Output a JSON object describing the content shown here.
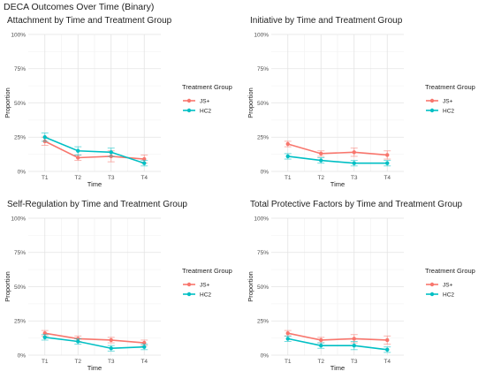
{
  "page": {
    "title": "DECA Outcomes Over Time (Binary)"
  },
  "chart_data": [
    {
      "type": "line",
      "title": "Attachment by Time and Treatment Group",
      "xlabel": "Time",
      "ylabel": "Proportion",
      "categories": [
        "T1",
        "T2",
        "T3",
        "T4"
      ],
      "yticks": [
        "0%",
        "25%",
        "50%",
        "75%",
        "100%"
      ],
      "ylim": [
        0,
        1
      ],
      "grid": true,
      "legend": {
        "title": "Treatment Group",
        "position": "right"
      },
      "series": [
        {
          "name": "JS+",
          "color": "#F8766D",
          "values": [
            0.22,
            0.1,
            0.11,
            0.09
          ],
          "err": [
            0.03,
            0.02,
            0.04,
            0.03
          ]
        },
        {
          "name": "HC2",
          "color": "#00BFC4",
          "values": [
            0.25,
            0.15,
            0.14,
            0.06
          ],
          "err": [
            0.03,
            0.03,
            0.03,
            0.02
          ]
        }
      ]
    },
    {
      "type": "line",
      "title": "Initiative by Time and Treatment Group",
      "xlabel": "Time",
      "ylabel": "Proportion",
      "categories": [
        "T1",
        "T2",
        "T3",
        "T4"
      ],
      "yticks": [
        "0%",
        "25%",
        "50%",
        "75%",
        "100%"
      ],
      "ylim": [
        0,
        1
      ],
      "grid": true,
      "legend": {
        "title": "Treatment Group",
        "position": "right"
      },
      "series": [
        {
          "name": "JS+",
          "color": "#F8766D",
          "values": [
            0.2,
            0.13,
            0.14,
            0.12
          ],
          "err": [
            0.02,
            0.02,
            0.03,
            0.03
          ]
        },
        {
          "name": "HC2",
          "color": "#00BFC4",
          "values": [
            0.11,
            0.08,
            0.06,
            0.06
          ],
          "err": [
            0.02,
            0.02,
            0.02,
            0.02
          ]
        }
      ]
    },
    {
      "type": "line",
      "title": "Self-Regulation by Time and Treatment Group",
      "xlabel": "Time",
      "ylabel": "Proportion",
      "categories": [
        "T1",
        "T2",
        "T3",
        "T4"
      ],
      "yticks": [
        "0%",
        "25%",
        "50%",
        "75%",
        "100%"
      ],
      "ylim": [
        0,
        1
      ],
      "grid": true,
      "legend": {
        "title": "Treatment Group",
        "position": "right"
      },
      "series": [
        {
          "name": "JS+",
          "color": "#F8766D",
          "values": [
            0.16,
            0.12,
            0.11,
            0.09
          ],
          "err": [
            0.02,
            0.02,
            0.02,
            0.02
          ]
        },
        {
          "name": "HC2",
          "color": "#00BFC4",
          "values": [
            0.13,
            0.1,
            0.05,
            0.06
          ],
          "err": [
            0.02,
            0.02,
            0.02,
            0.02
          ]
        }
      ]
    },
    {
      "type": "line",
      "title": "Total Protective Factors by Time and Treatment Group",
      "xlabel": "Time",
      "ylabel": "Proportion",
      "categories": [
        "T1",
        "T2",
        "T3",
        "T4"
      ],
      "yticks": [
        "0%",
        "25%",
        "50%",
        "75%",
        "100%"
      ],
      "ylim": [
        0,
        1
      ],
      "grid": true,
      "legend": {
        "title": "Treatment Group",
        "position": "right"
      },
      "series": [
        {
          "name": "JS+",
          "color": "#F8766D",
          "values": [
            0.16,
            0.11,
            0.12,
            0.11
          ],
          "err": [
            0.02,
            0.02,
            0.03,
            0.03
          ]
        },
        {
          "name": "HC2",
          "color": "#00BFC4",
          "values": [
            0.12,
            0.07,
            0.07,
            0.04
          ],
          "err": [
            0.02,
            0.02,
            0.03,
            0.02
          ]
        }
      ]
    }
  ]
}
